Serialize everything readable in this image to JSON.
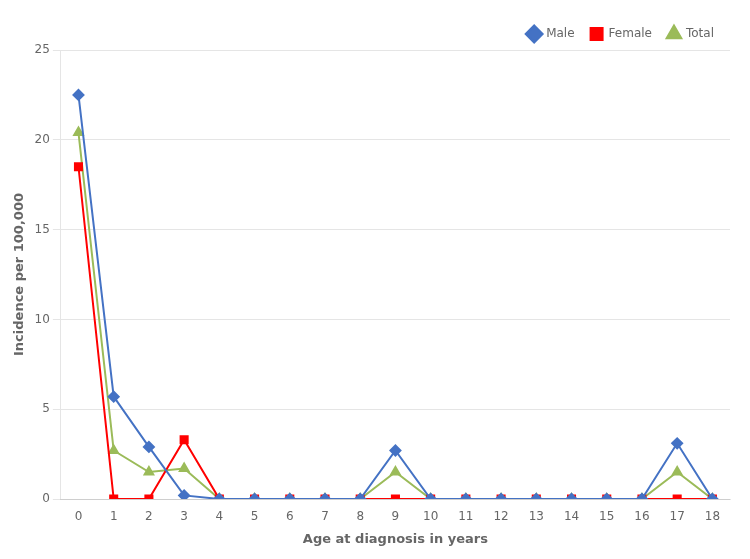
{
  "chart_data": {
    "type": "line",
    "x": [
      0,
      1,
      2,
      3,
      4,
      5,
      6,
      7,
      8,
      9,
      10,
      11,
      12,
      13,
      14,
      15,
      16,
      17,
      18
    ],
    "series": [
      {
        "name": "Male",
        "color": "#4472C4",
        "marker": "diamond",
        "values": [
          22.5,
          5.7,
          2.9,
          0.2,
          0.0,
          0.0,
          0.0,
          0.0,
          0.0,
          2.7,
          0.0,
          0.0,
          0.0,
          0.0,
          0.0,
          0.0,
          0.0,
          3.1,
          0.0
        ]
      },
      {
        "name": "Female",
        "color": "#FF0000",
        "marker": "square",
        "values": [
          18.5,
          0.0,
          0.0,
          3.3,
          0.0,
          0.0,
          0.0,
          0.0,
          0.0,
          0.0,
          0.0,
          0.0,
          0.0,
          0.0,
          0.0,
          0.0,
          0.0,
          0.0,
          0.0
        ]
      },
      {
        "name": "Total",
        "color": "#9BBB59",
        "marker": "triangle",
        "values": [
          20.4,
          2.7,
          1.5,
          1.7,
          0.0,
          0.0,
          0.0,
          0.0,
          0.0,
          1.5,
          0.0,
          0.0,
          0.0,
          0.0,
          0.0,
          0.0,
          0.0,
          1.5,
          0.0
        ]
      }
    ],
    "xlabel": "Age at diagnosis in years",
    "ylabel": "Incidence per 100,000",
    "xlim": [
      -0.5,
      18.5
    ],
    "xticks": [
      0,
      1,
      2,
      3,
      4,
      5,
      6,
      7,
      8,
      9,
      10,
      11,
      12,
      13,
      14,
      15,
      16,
      17,
      18
    ],
    "ylim": [
      0,
      25
    ],
    "yticks": [
      0,
      5,
      10,
      15,
      20,
      25
    ],
    "grid": "y",
    "legend": "upper right"
  }
}
